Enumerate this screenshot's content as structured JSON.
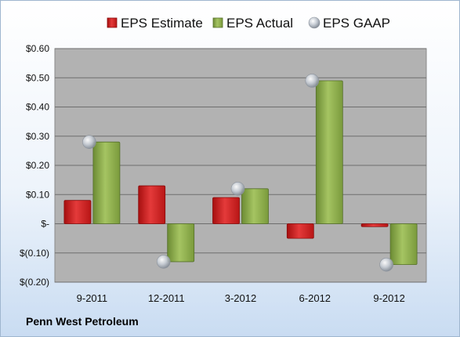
{
  "company": "Penn West Petroleum",
  "chart_data": {
    "type": "bar",
    "title": "",
    "xlabel": "",
    "ylabel": "",
    "categories": [
      "9-2011",
      "12-2011",
      "3-2012",
      "6-2012",
      "9-2012"
    ],
    "series": [
      {
        "name": "EPS Estimate",
        "kind": "bar",
        "color": "#d42020",
        "values": [
          0.08,
          0.13,
          0.09,
          -0.05,
          -0.01
        ]
      },
      {
        "name": "EPS Actual",
        "kind": "bar",
        "color": "#8cb04a",
        "values": [
          0.28,
          -0.13,
          0.12,
          0.49,
          -0.14
        ]
      },
      {
        "name": "EPS GAAP",
        "kind": "marker",
        "color": "#b8bec6",
        "values": [
          0.28,
          -0.13,
          0.12,
          0.49,
          -0.14
        ]
      }
    ],
    "ylim": [
      -0.2,
      0.6
    ],
    "yticks": [
      {
        "value": 0.6,
        "label": "$0.60"
      },
      {
        "value": 0.5,
        "label": "$0.50"
      },
      {
        "value": 0.4,
        "label": "$0.40"
      },
      {
        "value": 0.3,
        "label": "$0.30"
      },
      {
        "value": 0.2,
        "label": "$0.20"
      },
      {
        "value": 0.1,
        "label": "$0.10"
      },
      {
        "value": 0.0,
        "label": "$-"
      },
      {
        "value": -0.1,
        "label": "$(0.10)"
      },
      {
        "value": -0.2,
        "label": "$(0.20)"
      }
    ],
    "grid": true,
    "legend_position": "top"
  }
}
